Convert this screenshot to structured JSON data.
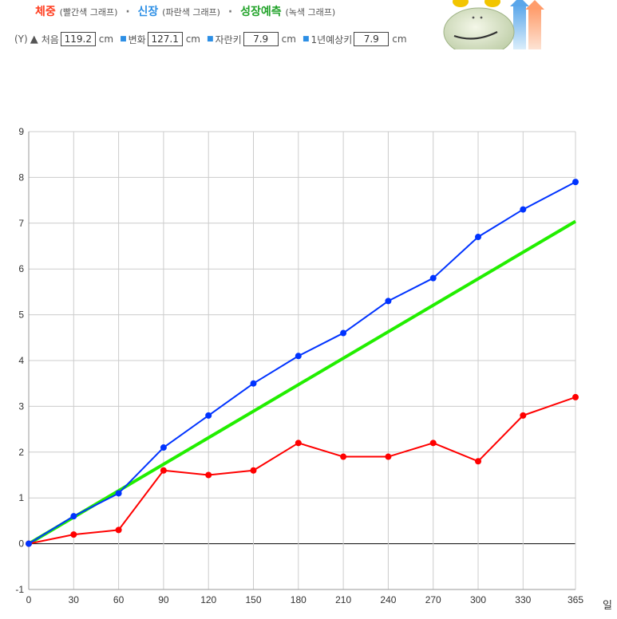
{
  "header": {
    "weight_label": "체중",
    "weight_note": "(빨간색 그래프)",
    "height_label": "신장",
    "height_note": "(파란색 그래프)",
    "forecast_label": "성장예측",
    "forecast_note": "(녹색 그래프)",
    "separator": "·"
  },
  "stats": {
    "y_marker": "(Y)",
    "first_label": "처음",
    "first_value": "119.2",
    "change_label": "변화",
    "change_value": "127.1",
    "grown_label": "자란키",
    "grown_value": "7.9",
    "year_label": "1년예상키",
    "year_value": "7.9",
    "unit": "cm"
  },
  "colors": {
    "weight": "#ff0000",
    "height": "#0033ff",
    "forecast": "#22ee00",
    "grid": "#cccccc"
  },
  "chart_data": {
    "type": "line",
    "xlabel": "일",
    "ylabel": "",
    "title": "",
    "xlim": [
      0,
      365
    ],
    "ylim": [
      -1,
      9
    ],
    "grid": true,
    "xticks": [
      0,
      30,
      60,
      90,
      120,
      150,
      180,
      210,
      240,
      270,
      300,
      330,
      365
    ],
    "yticks": [
      -1,
      0,
      1,
      2,
      3,
      4,
      5,
      6,
      7,
      8,
      9
    ],
    "series": [
      {
        "name": "신장",
        "color": "#0033ff",
        "x": [
          0,
          30,
          60,
          90,
          120,
          150,
          180,
          210,
          240,
          270,
          300,
          330,
          365
        ],
        "y": [
          0,
          0.6,
          1.1,
          2.1,
          2.8,
          3.5,
          4.1,
          4.6,
          5.3,
          5.8,
          6.7,
          7.3,
          7.9
        ],
        "markers": true
      },
      {
        "name": "체중",
        "color": "#ff0000",
        "x": [
          0,
          30,
          60,
          90,
          120,
          150,
          180,
          210,
          240,
          270,
          300,
          330,
          365
        ],
        "y": [
          0,
          0.2,
          0.3,
          1.6,
          1.5,
          1.6,
          2.2,
          1.9,
          1.9,
          2.2,
          1.8,
          2.8,
          3.2
        ],
        "markers": true
      },
      {
        "name": "성장예측",
        "color": "#22ee00",
        "x": [
          0,
          365
        ],
        "y": [
          0,
          7.04
        ],
        "markers": false
      }
    ]
  }
}
